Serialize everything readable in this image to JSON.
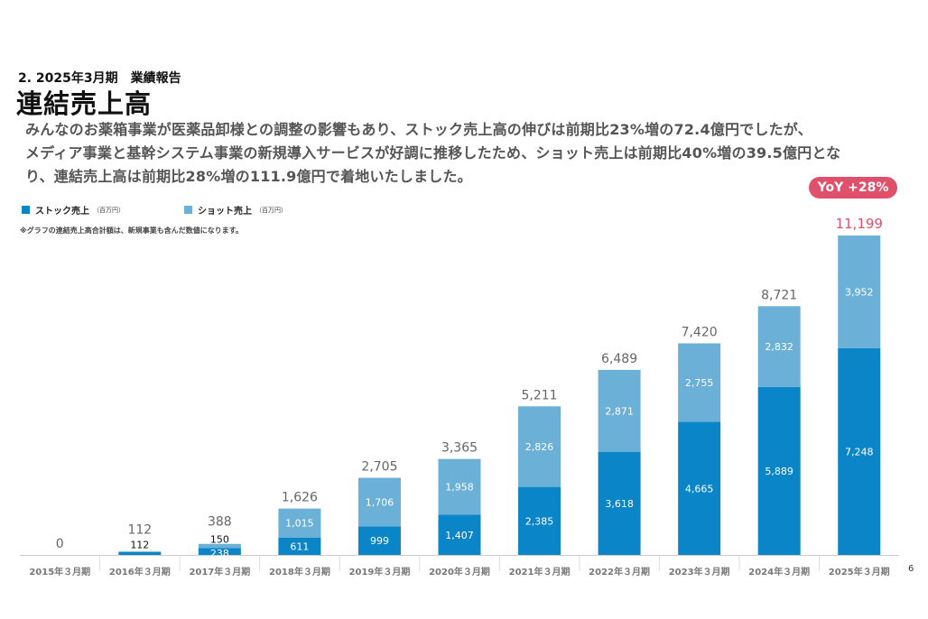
{
  "header": {
    "section_label": "2. 2025年3月期　業績報告",
    "title": "連結売上高",
    "summary_lines": [
      "みんなのお薬箱事業が医薬品卸様との調整の影響もあり、ストック売上高の伸びは前期比23%増の72.4億円でしたが、",
      "メディア事業と基幹システム事業の新規導入サービスが好調に推移したため、ショット売上は前期比40%増の39.5億円とな",
      "り、連結売上高は前期比28%増の111.9億円で着地いたしました。"
    ]
  },
  "legend": {
    "stock_label": "ストック売上",
    "stock_unit": "（百万円）",
    "shot_label": "ショット売上",
    "shot_unit": "（百万円）"
  },
  "note": "※グラフの連結売上高合計額は、新規事業も含んだ数値になります。",
  "yoy_badge": "YoY +28%",
  "page_number": "6",
  "colors": {
    "stock": "#0a85c7",
    "shot": "#6bb0d6",
    "total_text": "#666666",
    "highlight": "#e0506a",
    "axis_label": "#777777"
  },
  "chart_data": {
    "type": "bar",
    "stacked": true,
    "categories": [
      "2015年３月期",
      "2016年３月期",
      "2017年３月期",
      "2018年３月期",
      "2019年３月期",
      "2020年３月期",
      "2021年３月期",
      "2022年３月期",
      "2023年３月期",
      "2024年３月期",
      "2025年３月期"
    ],
    "series": [
      {
        "name": "ストック売上",
        "values": [
          0,
          112,
          238,
          611,
          999,
          1407,
          2385,
          3618,
          4665,
          5889,
          7248
        ]
      },
      {
        "name": "ショット売上",
        "values": [
          0,
          0,
          150,
          1015,
          1706,
          1958,
          2826,
          2871,
          2755,
          2832,
          3952
        ]
      }
    ],
    "totals": [
      0,
      112,
      388,
      1626,
      2705,
      3365,
      5211,
      6489,
      7420,
      8721,
      11199
    ],
    "ylim": [
      0,
      11200
    ],
    "grid": false
  }
}
